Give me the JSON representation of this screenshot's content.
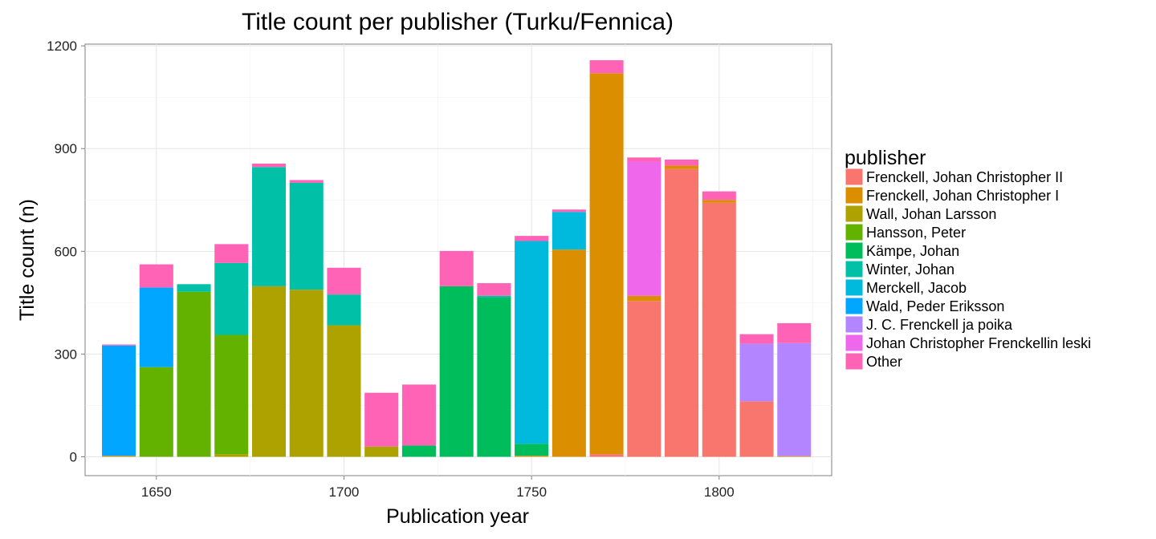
{
  "chart_data": {
    "type": "bar",
    "stacked": true,
    "title": "Title count per publisher (Turku/Fennica)",
    "xlabel": "Publication year",
    "ylabel": "Title count (n)",
    "xlim": [
      1631,
      1830
    ],
    "ylim": [
      -55,
      1205
    ],
    "x_ticks": [
      1650,
      1700,
      1750,
      1800
    ],
    "y_ticks": [
      0,
      300,
      600,
      900,
      1200
    ],
    "bar_width_years": 9,
    "grid": true,
    "legend_position": "right",
    "legend_title": "publisher",
    "categories": [
      1640,
      1650,
      1660,
      1670,
      1680,
      1690,
      1700,
      1710,
      1720,
      1730,
      1740,
      1750,
      1760,
      1770,
      1780,
      1790,
      1800,
      1810,
      1820
    ],
    "series": [
      {
        "name": "Frenckell, Johan Christopher II",
        "color": "#F8766D",
        "values": [
          0,
          0,
          0,
          0,
          0,
          0,
          0,
          0,
          0,
          0,
          0,
          0,
          0,
          8,
          455,
          840,
          742,
          162,
          0
        ]
      },
      {
        "name": "Frenckell, Johan Christopher I",
        "color": "#DB8E00",
        "values": [
          3,
          0,
          0,
          0,
          0,
          0,
          0,
          0,
          0,
          0,
          0,
          3,
          605,
          1112,
          15,
          10,
          8,
          0,
          2
        ]
      },
      {
        "name": "Wall, Johan Larsson",
        "color": "#AEA200",
        "values": [
          0,
          0,
          0,
          8,
          498,
          488,
          384,
          30,
          0,
          0,
          0,
          0,
          0,
          0,
          0,
          0,
          0,
          0,
          0
        ]
      },
      {
        "name": "Hansson, Peter",
        "color": "#64B200",
        "values": [
          0,
          262,
          482,
          348,
          0,
          0,
          0,
          0,
          0,
          0,
          0,
          0,
          0,
          0,
          0,
          0,
          0,
          0,
          0
        ]
      },
      {
        "name": "Kämpe, Johan",
        "color": "#00BD5C",
        "values": [
          0,
          0,
          0,
          0,
          0,
          0,
          0,
          0,
          33,
          498,
          465,
          35,
          0,
          0,
          0,
          0,
          0,
          0,
          0
        ]
      },
      {
        "name": "Winter, Johan",
        "color": "#00C1A7",
        "values": [
          0,
          0,
          22,
          210,
          348,
          312,
          90,
          0,
          0,
          0,
          5,
          0,
          0,
          0,
          0,
          0,
          0,
          0,
          0
        ]
      },
      {
        "name": "Merckell, Jacob",
        "color": "#00BADE",
        "values": [
          0,
          0,
          0,
          0,
          0,
          0,
          0,
          0,
          0,
          0,
          0,
          592,
          110,
          0,
          0,
          0,
          0,
          0,
          0
        ]
      },
      {
        "name": "Wald, Peder Eriksson",
        "color": "#00A6FF",
        "values": [
          322,
          232,
          0,
          0,
          0,
          0,
          0,
          0,
          0,
          0,
          0,
          0,
          0,
          0,
          0,
          0,
          0,
          0,
          0
        ]
      },
      {
        "name": "J. C. Frenckell ja poika",
        "color": "#B385FF",
        "values": [
          0,
          0,
          0,
          0,
          0,
          0,
          0,
          0,
          0,
          0,
          0,
          0,
          0,
          0,
          0,
          0,
          0,
          168,
          330
        ]
      },
      {
        "name": "Johan Christopher Frenckellin leski",
        "color": "#EF67EB",
        "values": [
          0,
          0,
          0,
          0,
          0,
          0,
          0,
          0,
          0,
          0,
          0,
          0,
          0,
          0,
          392,
          0,
          0,
          0,
          0
        ]
      },
      {
        "name": "Other",
        "color": "#FF63B6",
        "values": [
          3,
          68,
          0,
          55,
          10,
          8,
          78,
          157,
          178,
          103,
          37,
          15,
          7,
          38,
          12,
          18,
          25,
          28,
          58
        ]
      }
    ]
  }
}
